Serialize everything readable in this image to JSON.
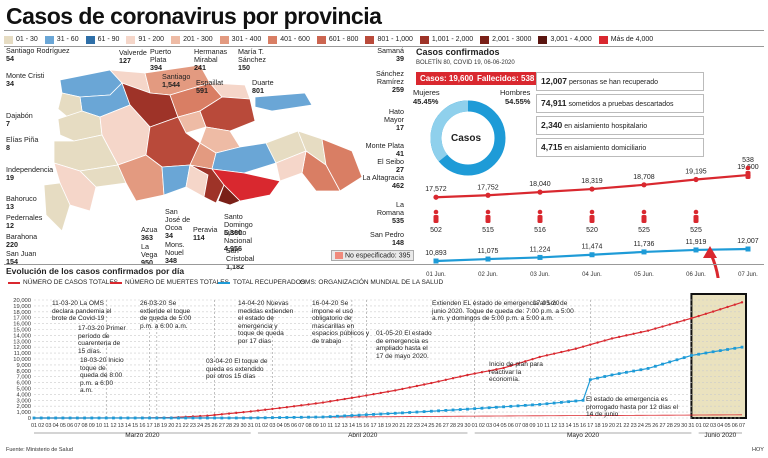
{
  "title": "Casos de coronavirus por provincia",
  "legend": [
    {
      "label": "01 - 30",
      "color": "#e6dcc2"
    },
    {
      "label": "31 - 60",
      "color": "#6aa6d6"
    },
    {
      "label": "61 - 90",
      "color": "#2e6fa8"
    },
    {
      "label": "91 - 200",
      "color": "#f5d6c9"
    },
    {
      "label": "201 - 300",
      "color": "#eebba5"
    },
    {
      "label": "301 - 400",
      "color": "#e39a80"
    },
    {
      "label": "401 - 600",
      "color": "#d97e64"
    },
    {
      "label": "601 - 800",
      "color": "#cc6550"
    },
    {
      "label": "801 - 1,000",
      "color": "#b94a3a"
    },
    {
      "label": "1,001 - 2,000",
      "color": "#9e3328"
    },
    {
      "label": "2,001 - 3000",
      "color": "#7a2018"
    },
    {
      "label": "3,001 - 4,000",
      "color": "#5a1510"
    },
    {
      "label": "Más de 4,000",
      "color": "#d9282f"
    }
  ],
  "provinces": [
    {
      "name": "Santiago Rodríguez",
      "value": "54"
    },
    {
      "name": "Monte Cristi",
      "value": "34"
    },
    {
      "name": "Dajabón",
      "value": "7"
    },
    {
      "name": "Elías Piña",
      "value": "8"
    },
    {
      "name": "Independencia",
      "value": "19"
    },
    {
      "name": "Bahoruco",
      "value": "13"
    },
    {
      "name": "Pedernales",
      "value": "12"
    },
    {
      "name": "Barahona",
      "value": "220"
    },
    {
      "name": "San Juan",
      "value": "154"
    },
    {
      "name": "Valverde",
      "value": "127"
    },
    {
      "name": "Puerto Plata",
      "value": "394"
    },
    {
      "name": "Santiago",
      "value": "1,544"
    },
    {
      "name": "Hermanas Mirabal",
      "value": "241"
    },
    {
      "name": "Espaillat",
      "value": "591"
    },
    {
      "name": "María T. Sánchez",
      "value": "150"
    },
    {
      "name": "Duarte",
      "value": "801"
    },
    {
      "name": "Samaná",
      "value": "39"
    },
    {
      "name": "Sánchez Ramírez",
      "value": "259"
    },
    {
      "name": "Hato Mayor",
      "value": "17"
    },
    {
      "name": "Monte Plata",
      "value": "41"
    },
    {
      "name": "El Seibo",
      "value": "27"
    },
    {
      "name": "La Altagracia",
      "value": "462"
    },
    {
      "name": "La Romana",
      "value": "535"
    },
    {
      "name": "San Pedro",
      "value": "148"
    },
    {
      "name": "Santo Domingo",
      "value": "5,360"
    },
    {
      "name": "Distrito Nacional",
      "value": "4,956"
    },
    {
      "name": "San Cristobal",
      "value": "1,182"
    },
    {
      "name": "Peravia",
      "value": "114"
    },
    {
      "name": "Mons. Nouel",
      "value": "348"
    },
    {
      "name": "San José de Ocoa",
      "value": "34"
    },
    {
      "name": "Azua",
      "value": "363"
    },
    {
      "name": "La Vega",
      "value": "950"
    }
  ],
  "no_especificado": "No especificado: 395",
  "confirmed": {
    "title": "Casos confirmados",
    "bulletin": "BOLETÍN 80, COVID 19, 06-06-2020",
    "cases_badge": "Casos: 19,600",
    "deaths_badge": "Fallecidos: 538",
    "women_label": "Mujeres",
    "women_pct": "45.45%",
    "men_label": "Hombres",
    "men_pct": "54.55%",
    "donut_label": "Casos",
    "stats": [
      {
        "value": "12,007",
        "text": "personas se han recuperado"
      },
      {
        "value": "74,911",
        "text": "sometidos a pruebas descartados"
      },
      {
        "value": "2,340",
        "text": "en aislamiento hospitalario"
      },
      {
        "value": "4,715",
        "text": "en aislamiento domiciliario"
      }
    ]
  },
  "mini_chart": {
    "dates": [
      "01 Jun.",
      "02 Jun.",
      "03 Jun.",
      "04 Jun.",
      "05 Jun.",
      "06 Jun.",
      "07 Jun."
    ],
    "cases": [
      17572,
      17752,
      18040,
      18319,
      18708,
      19195,
      19600
    ],
    "cases_labels": [
      "17,572",
      "17,752",
      "18,040",
      "18,319",
      "18,708",
      "19,195",
      "19,600"
    ],
    "deaths": [
      502,
      515,
      516,
      520,
      525,
      525,
      538
    ],
    "recovered": [
      10893,
      11075,
      11224,
      11474,
      11736,
      11919,
      12007
    ],
    "recovered_labels": [
      "10,893",
      "11,075",
      "11,224",
      "11,474",
      "11,736",
      "11,919",
      "12,007"
    ],
    "cases_color": "#d9282f",
    "recovered_color": "#1e9bd7"
  },
  "evolution": {
    "title": "Evolución de los casos confirmados por día",
    "legend_cases": "NÚMERO DE CASOS TOTALES",
    "legend_deaths": "NÚMERO DE MUERTES TOTALES",
    "legend_recovered": "TOTAL RECUPERADOS",
    "legend_oms": "OMS: ORGANIZACIÓN MUNDIAL DE LA SALUD",
    "source": "Fuente: Ministerio de Salud",
    "page_code": "HOY",
    "month_labels": [
      "Marzo 2020",
      "Abril 2020",
      "Mayo 2020",
      "Junio 2020"
    ],
    "annotations": [
      "11-03-20 La OMS declara pandemia el brote de Covid-19",
      "17-03-20 Primer período de cuarentena de 15 días.",
      "18-03-20 Inicio toque de queda de 8:00 p.m. a 6:00 a.m.",
      "26-03-20 Se extiende el toque de queda de 5:00 p.m. a 6:00 a.m.",
      "03-04-20 El toque de queda es extendido por otros 15 días",
      "14-04-20 Nuevas medidas extienden el estado de emergencia y toque de queda por 17 días",
      "16-04-20 Se impone el uso obligatorio de mascarillas en espacios públicos y de trabajo",
      "01-05-20 El estado de emergencia es ampliado hasta el 17 de mayo 2020.",
      "Extienden EL estado de emergencia al 1ro. de junio 2020. Toque de queda de: 7:00 p.m. a 5:00 a.m. y domingos de 5:00 p.m. a 5:00 a.m.",
      "17-05-20",
      "Inicio de plan para reactivar la economía.",
      "El estado de emergencia es prorrogado hasta por 12 días el 14 de junio"
    ]
  },
  "chart_data": [
    {
      "type": "line",
      "title": "",
      "x": [
        "01 Jun.",
        "02 Jun.",
        "03 Jun.",
        "04 Jun.",
        "05 Jun.",
        "06 Jun.",
        "07 Jun."
      ],
      "series": [
        {
          "name": "Casos",
          "values": [
            17572,
            17752,
            18040,
            18319,
            18708,
            19195,
            19600
          ]
        },
        {
          "name": "Fallecidos",
          "values": [
            502,
            515,
            516,
            520,
            525,
            525,
            538
          ]
        },
        {
          "name": "Recuperados",
          "values": [
            10893,
            11075,
            11224,
            11474,
            11736,
            11919,
            12007
          ]
        }
      ]
    },
    {
      "type": "line",
      "title": "Evolución de los casos confirmados por día",
      "x_start": "2020-03-01",
      "x_end": "2020-06-07",
      "ylim": [
        0,
        20000
      ],
      "yticks": [
        "0",
        "1,000",
        "2,000",
        "3,000",
        "4,000",
        "5,000",
        "6,000",
        "7,000",
        "8,000",
        "9,000",
        "10,000",
        "11,000",
        "12,000",
        "13,000",
        "14,000",
        "15,000",
        "16,000",
        "17,000",
        "18,000",
        "19,000",
        "20,000"
      ],
      "series": [
        {
          "name": "NÚMERO DE CASOS TOTALES",
          "points": [
            [
              "2020-03-01",
              1
            ],
            [
              "2020-03-15",
              11
            ],
            [
              "2020-03-20",
              72
            ],
            [
              "2020-03-25",
              392
            ],
            [
              "2020-03-31",
              1109
            ],
            [
              "2020-04-05",
              1828
            ],
            [
              "2020-04-10",
              2620
            ],
            [
              "2020-04-15",
              3614
            ],
            [
              "2020-04-20",
              4680
            ],
            [
              "2020-04-25",
              5926
            ],
            [
              "2020-04-30",
              7288
            ],
            [
              "2020-05-05",
              8480
            ],
            [
              "2020-05-10",
              10347
            ],
            [
              "2020-05-15",
              11739
            ],
            [
              "2020-05-20",
              13477
            ],
            [
              "2020-05-25",
              14801
            ],
            [
              "2020-05-31",
              16908
            ],
            [
              "2020-06-03",
              18040
            ],
            [
              "2020-06-07",
              19600
            ]
          ]
        },
        {
          "name": "NÚMERO DE MUERTES TOTALES",
          "points": [
            [
              "2020-03-01",
              0
            ],
            [
              "2020-03-31",
              51
            ],
            [
              "2020-04-30",
              313
            ],
            [
              "2020-05-31",
              498
            ],
            [
              "2020-06-07",
              538
            ]
          ]
        },
        {
          "name": "TOTAL RECUPERADOS",
          "points": [
            [
              "2020-03-01",
              0
            ],
            [
              "2020-03-31",
              5
            ],
            [
              "2020-04-10",
              170
            ],
            [
              "2020-04-20",
              800
            ],
            [
              "2020-04-30",
              1500
            ],
            [
              "2020-05-10",
              2300
            ],
            [
              "2020-05-16",
              3000
            ],
            [
              "2020-05-17",
              6500
            ],
            [
              "2020-05-20",
              7300
            ],
            [
              "2020-05-25",
              8400
            ],
            [
              "2020-05-31",
              10600
            ],
            [
              "2020-06-03",
              11224
            ],
            [
              "2020-06-07",
              12007
            ]
          ]
        }
      ]
    }
  ]
}
